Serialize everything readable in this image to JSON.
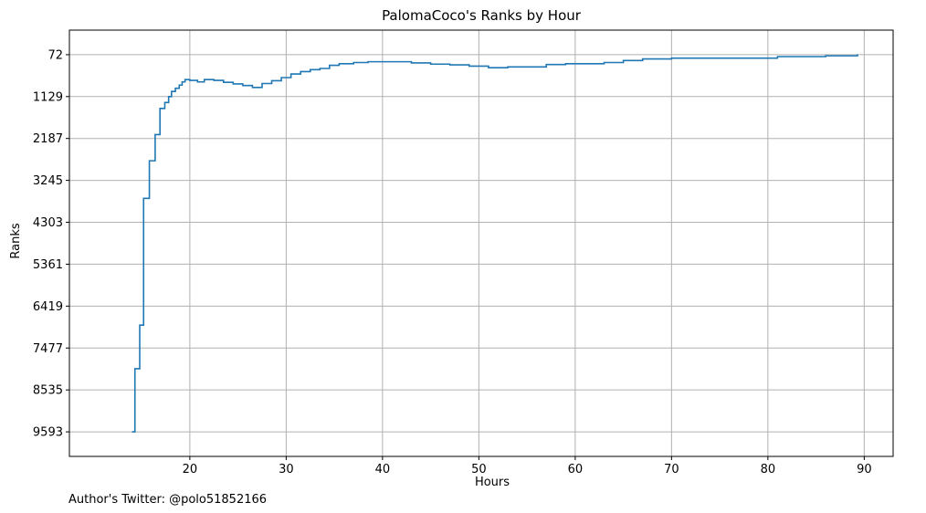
{
  "chart_data": {
    "type": "line",
    "title": "PalomaCoco's Ranks by Hour",
    "xlabel": "Hours",
    "ylabel": "Ranks",
    "xlim": [
      7.5,
      93
    ],
    "ylim": [
      10213,
      -548
    ],
    "y_inverted": true,
    "grid": true,
    "step": true,
    "x_ticks": [
      20,
      30,
      40,
      50,
      60,
      70,
      80,
      90
    ],
    "y_ticks": [
      72,
      1129,
      2187,
      3245,
      4303,
      5361,
      6419,
      7477,
      8535,
      9593
    ],
    "line_color": "#1f77b4",
    "series": [
      {
        "x": [
          14.0,
          14.3,
          14.8,
          15.2,
          15.8,
          16.4,
          16.9,
          17.4,
          17.8,
          18.1,
          18.5,
          18.9,
          19.2,
          19.5,
          20.0,
          20.8,
          21.5,
          22.5,
          23.5,
          24.5,
          25.5,
          26.5,
          27.5,
          28.5,
          29.5,
          30.5,
          31.5,
          32.5,
          33.5,
          34.5,
          35.5,
          37.0,
          38.5,
          41.0,
          43.0,
          45.0,
          47.0,
          49.0,
          51.0,
          53.0,
          55.0,
          57.0,
          59.0,
          61.0,
          63.0,
          65.0,
          67.0,
          70.0,
          73.0,
          77.0,
          81.0,
          86.0,
          89.3
        ],
        "y": [
          9593,
          8000,
          6900,
          3700,
          2750,
          2090,
          1430,
          1280,
          1130,
          1000,
          920,
          840,
          760,
          700,
          720,
          760,
          700,
          720,
          770,
          810,
          850,
          900,
          800,
          730,
          650,
          560,
          500,
          450,
          420,
          340,
          300,
          270,
          250,
          250,
          280,
          310,
          330,
          360,
          400,
          380,
          380,
          320,
          300,
          300,
          270,
          220,
          180,
          160,
          160,
          160,
          120,
          100,
          60
        ]
      }
    ]
  },
  "footer": {
    "author": "Author's Twitter: @polo51852166"
  }
}
